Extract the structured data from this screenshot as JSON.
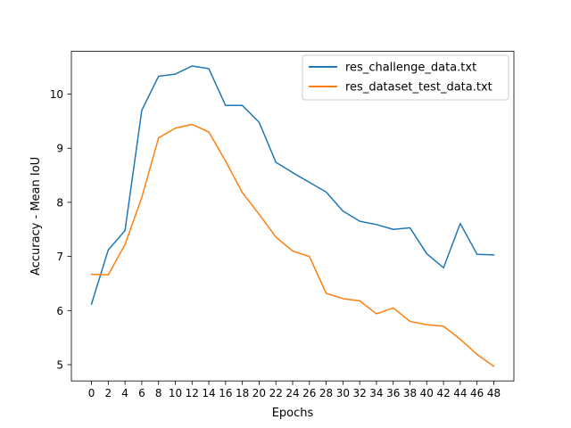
{
  "chart_data": {
    "type": "line",
    "title": "",
    "xlabel": "Epochs",
    "ylabel": "Accuracy - Mean IoU",
    "x": [
      0,
      2,
      4,
      6,
      8,
      10,
      12,
      14,
      16,
      18,
      20,
      22,
      24,
      26,
      28,
      30,
      32,
      34,
      36,
      38,
      40,
      42,
      44,
      46,
      48
    ],
    "xticks": [
      "0",
      "2",
      "4",
      "6",
      "8",
      "10",
      "12",
      "14",
      "16",
      "18",
      "20",
      "22",
      "24",
      "26",
      "28",
      "30",
      "32",
      "34",
      "36",
      "38",
      "40",
      "42",
      "44",
      "46",
      "48"
    ],
    "yticks": [
      "5",
      "6",
      "7",
      "8",
      "9",
      "10"
    ],
    "xlim": [
      -2.4,
      50.4
    ],
    "ylim": [
      4.7,
      10.79
    ],
    "grid": false,
    "legend_position": "upper right",
    "series": [
      {
        "name": "res_challenge_data.txt",
        "color": "#1f77b4",
        "values": [
          6.12,
          7.12,
          7.48,
          9.7,
          10.33,
          10.37,
          10.52,
          10.47,
          9.79,
          9.79,
          9.48,
          8.74,
          8.55,
          8.37,
          8.19,
          7.84,
          7.65,
          7.59,
          7.5,
          7.53,
          7.05,
          6.79,
          7.61,
          7.04,
          7.03
        ]
      },
      {
        "name": "res_dataset_test_data.txt",
        "color": "#ff7f0e",
        "values": [
          6.67,
          6.66,
          7.22,
          8.09,
          9.19,
          9.37,
          9.44,
          9.3,
          8.76,
          8.18,
          7.78,
          7.36,
          7.1,
          7.0,
          6.32,
          6.22,
          6.18,
          5.94,
          6.05,
          5.8,
          5.74,
          5.71,
          5.47,
          5.19,
          4.97
        ]
      }
    ]
  }
}
